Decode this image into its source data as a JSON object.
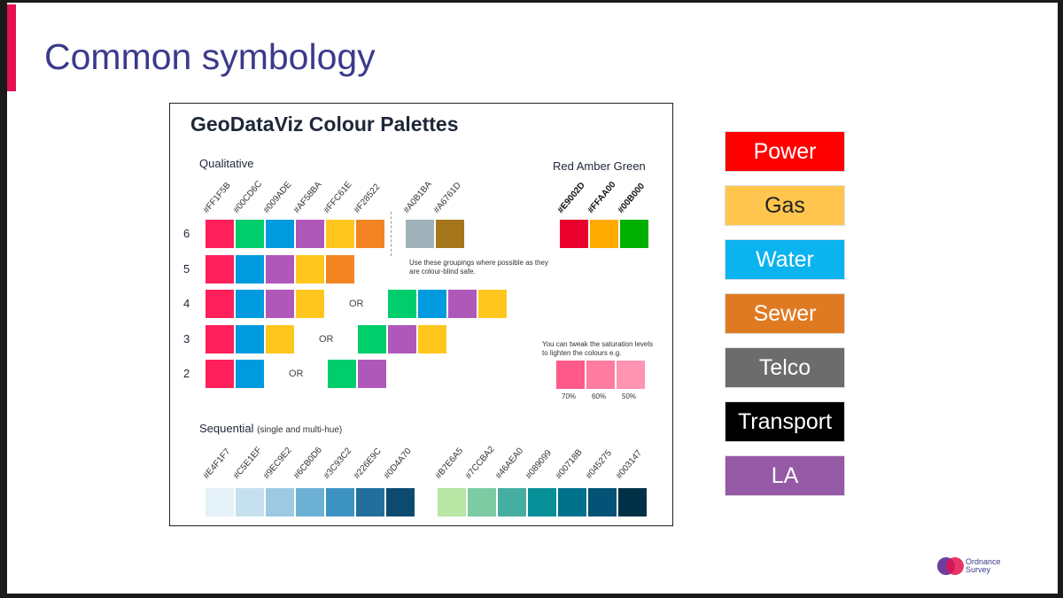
{
  "slide": {
    "title": "Common symbology"
  },
  "panel": {
    "title": "GeoDataViz Colour Palettes",
    "qualitative_label": "Qualitative",
    "rag_label": "Red Amber Green",
    "qualitative_hex": [
      "#FF1F5B",
      "#00CD6C",
      "#009ADE",
      "#AF58BA",
      "#FFC61E",
      "#F28522",
      "#A0B1BA",
      "#A6761D"
    ],
    "rag_hex": [
      "#E9002D",
      "#FFAA00",
      "#00B000"
    ],
    "row_labels": [
      "6",
      "5",
      "4",
      "3",
      "2"
    ],
    "or_label": "OR",
    "colourblind_note": "Use these groupings where possible as they are colour-blind safe.",
    "saturation_note": "You can tweak the saturation levels to lighten the colours e.g.",
    "saturation_pcts": [
      "70%",
      "60%",
      "50%"
    ],
    "saturation_colors": [
      "#ff5a8a",
      "#ff7ba0",
      "#ff94b3"
    ],
    "sequential_label": "Sequential",
    "sequential_sub": "(single and multi-hue)",
    "seq1_hex": [
      "#E4F1F7",
      "#C5E1EF",
      "#9EC9E2",
      "#6CB0D6",
      "#3C93C2",
      "#226E9C",
      "#0D4A70"
    ],
    "seq2_hex": [
      "#B7E6A5",
      "#7CCBA2",
      "#46AEA0",
      "#089099",
      "#00718B",
      "#045275",
      "#003147"
    ]
  },
  "legend": [
    {
      "label": "Power",
      "bg": "#ff0000",
      "fg": "#ffffff"
    },
    {
      "label": "Gas",
      "bg": "#ffc54e",
      "fg": "#222222"
    },
    {
      "label": "Water",
      "bg": "#0bb3ef",
      "fg": "#ffffff"
    },
    {
      "label": "Sewer",
      "bg": "#e07a22",
      "fg": "#ffffff"
    },
    {
      "label": "Telco",
      "bg": "#6c6c6c",
      "fg": "#ffffff"
    },
    {
      "label": "Transport",
      "bg": "#000000",
      "fg": "#ffffff"
    },
    {
      "label": "LA",
      "bg": "#9659a6",
      "fg": "#ffffff"
    }
  ],
  "logo": {
    "line1": "Ordnance",
    "line2": "Survey"
  }
}
